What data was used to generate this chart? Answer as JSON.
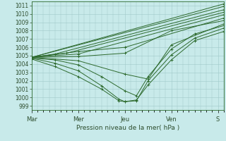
{
  "bg_color": "#c8eaea",
  "plot_bg_color": "#c8eaea",
  "grid_color": "#a0c8c8",
  "line_color": "#2d6a2d",
  "marker_color": "#2d6a2d",
  "ylabel_ticks": [
    999,
    1000,
    1001,
    1002,
    1003,
    1004,
    1005,
    1006,
    1007,
    1008,
    1009,
    1010,
    1011
  ],
  "ylim": [
    998.5,
    1011.5
  ],
  "xlabel": "Pression niveau de la mer( hPa )",
  "xtick_labels": [
    "Mar",
    "Mer",
    "Jeu",
    "Ven",
    "S"
  ],
  "xtick_positions": [
    0,
    48,
    96,
    144,
    192
  ],
  "total_hours": 198,
  "series": [
    {
      "x": [
        0,
        198
      ],
      "y": [
        1004.8,
        1011.2
      ]
    },
    {
      "x": [
        0,
        198
      ],
      "y": [
        1004.8,
        1010.9
      ]
    },
    {
      "x": [
        0,
        24,
        198
      ],
      "y": [
        1004.8,
        1005.2,
        1010.5
      ]
    },
    {
      "x": [
        0,
        36,
        198
      ],
      "y": [
        1004.8,
        1005.3,
        1010.2
      ]
    },
    {
      "x": [
        0,
        48,
        198
      ],
      "y": [
        1004.8,
        1005.2,
        1009.9
      ]
    },
    {
      "x": [
        0,
        48,
        96,
        198
      ],
      "y": [
        1004.8,
        1005.5,
        1006.0,
        1009.5
      ]
    },
    {
      "x": [
        0,
        48,
        96,
        144,
        198
      ],
      "y": [
        1004.8,
        1004.9,
        1005.3,
        1008.0,
        1009.2
      ]
    },
    {
      "x": [
        0,
        48,
        96,
        120,
        144,
        198
      ],
      "y": [
        1004.8,
        1004.4,
        1002.8,
        1002.2,
        1006.3,
        1008.8
      ]
    },
    {
      "x": [
        0,
        24,
        48,
        72,
        96,
        108,
        120,
        144,
        168,
        198
      ],
      "y": [
        1004.7,
        1004.5,
        1003.9,
        1002.5,
        1000.8,
        1000.2,
        1002.5,
        1005.8,
        1007.6,
        1008.6
      ]
    },
    {
      "x": [
        0,
        24,
        48,
        72,
        90,
        96,
        108,
        120,
        144,
        168,
        198
      ],
      "y": [
        1004.7,
        1004.1,
        1003.2,
        1001.4,
        999.8,
        999.5,
        999.6,
        1002.0,
        1005.1,
        1007.1,
        1008.3
      ]
    },
    {
      "x": [
        0,
        24,
        48,
        72,
        90,
        96,
        108,
        120,
        144,
        168,
        198
      ],
      "y": [
        1004.6,
        1003.7,
        1002.5,
        1001.0,
        999.6,
        999.5,
        999.7,
        1001.5,
        1004.5,
        1006.8,
        1007.9
      ]
    }
  ]
}
